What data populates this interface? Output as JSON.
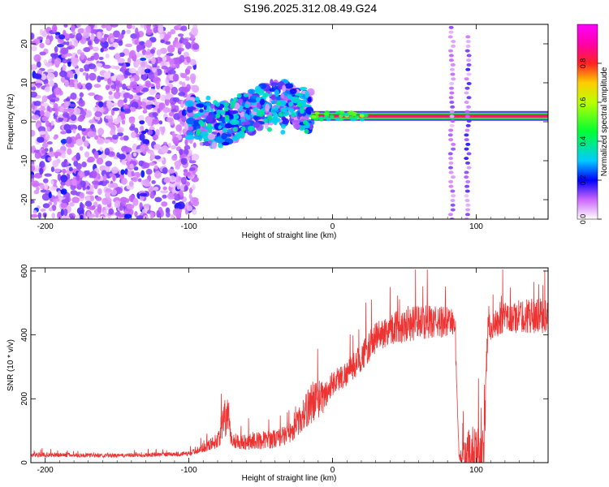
{
  "title": "S196.2025.312.08.49.G24",
  "chart_data": [
    {
      "type": "heatmap",
      "xlabel": "Height of straight line (km)",
      "ylabel": "Frequency (Hz)",
      "xlim": [
        -210,
        150
      ],
      "ylim": [
        -25,
        25
      ],
      "xticks": [
        -200,
        -100,
        0,
        100
      ],
      "yticks": [
        -20,
        -10,
        0,
        10,
        20
      ],
      "colorbar": {
        "label": "Normalized spectral amplitude",
        "range": [
          0,
          1
        ],
        "ticks": [
          0,
          0.2,
          0.4,
          0.6,
          0.8
        ],
        "tick_labels": [
          "0.0",
          "0.2",
          "0.4",
          "0.6",
          "0.8"
        ],
        "stops": [
          {
            "v": 0.0,
            "color": "#ffffff"
          },
          {
            "v": 0.1,
            "color": "#cc66ff"
          },
          {
            "v": 0.2,
            "color": "#0000ff"
          },
          {
            "v": 0.3,
            "color": "#00ccff"
          },
          {
            "v": 0.45,
            "color": "#00ff33"
          },
          {
            "v": 0.6,
            "color": "#bbff00"
          },
          {
            "v": 0.7,
            "color": "#ffcc00"
          },
          {
            "v": 0.8,
            "color": "#ff2222"
          },
          {
            "v": 0.9,
            "color": "#ff00aa"
          },
          {
            "v": 1.0,
            "color": "#ff00ff"
          }
        ]
      },
      "features": [
        {
          "kind": "noise",
          "x_range": [
            -210,
            -95
          ],
          "f_range": [
            -25,
            25
          ],
          "amplitude": 0.12
        },
        {
          "kind": "scatter_band",
          "x_range": [
            -100,
            -15
          ],
          "f_range": [
            -8,
            10
          ],
          "amplitude": 0.3
        },
        {
          "kind": "tone",
          "x_range": [
            -15,
            150
          ],
          "f": 1.5,
          "amplitude": 0.85
        },
        {
          "kind": "broadband",
          "x": 83,
          "f_range": [
            -25,
            25
          ],
          "amplitude": 0.1
        },
        {
          "kind": "broadband",
          "x": 94,
          "f_range": [
            -25,
            22
          ],
          "amplitude": 0.15
        }
      ]
    },
    {
      "type": "line",
      "xlabel": "Height of straight line (km)",
      "ylabel": "SNR (10 * v/v)",
      "xlim": [
        -210,
        150
      ],
      "ylim": [
        0,
        610
      ],
      "xticks": [
        -200,
        -100,
        0,
        100
      ],
      "yticks": [
        0,
        200,
        400,
        600
      ],
      "color": "#ee3333",
      "envelope": {
        "x": [
          -210,
          -150,
          -100,
          -90,
          -80,
          -74,
          -70,
          -60,
          -40,
          -30,
          -20,
          -15,
          -10,
          -5,
          0,
          10,
          20,
          30,
          40,
          50,
          60,
          70,
          80,
          85,
          88,
          95,
          105,
          108,
          120,
          135,
          150
        ],
        "mean": [
          25,
          22,
          28,
          45,
          70,
          150,
          70,
          65,
          75,
          90,
          150,
          190,
          200,
          210,
          250,
          280,
          330,
          390,
          420,
          430,
          440,
          440,
          440,
          440,
          20,
          15,
          15,
          420,
          450,
          460,
          460
        ],
        "spread": [
          15,
          12,
          15,
          25,
          50,
          150,
          50,
          50,
          60,
          60,
          100,
          140,
          120,
          100,
          80,
          80,
          90,
          100,
          100,
          110,
          110,
          100,
          100,
          80,
          10,
          200,
          180,
          80,
          100,
          110,
          110
        ]
      }
    }
  ]
}
